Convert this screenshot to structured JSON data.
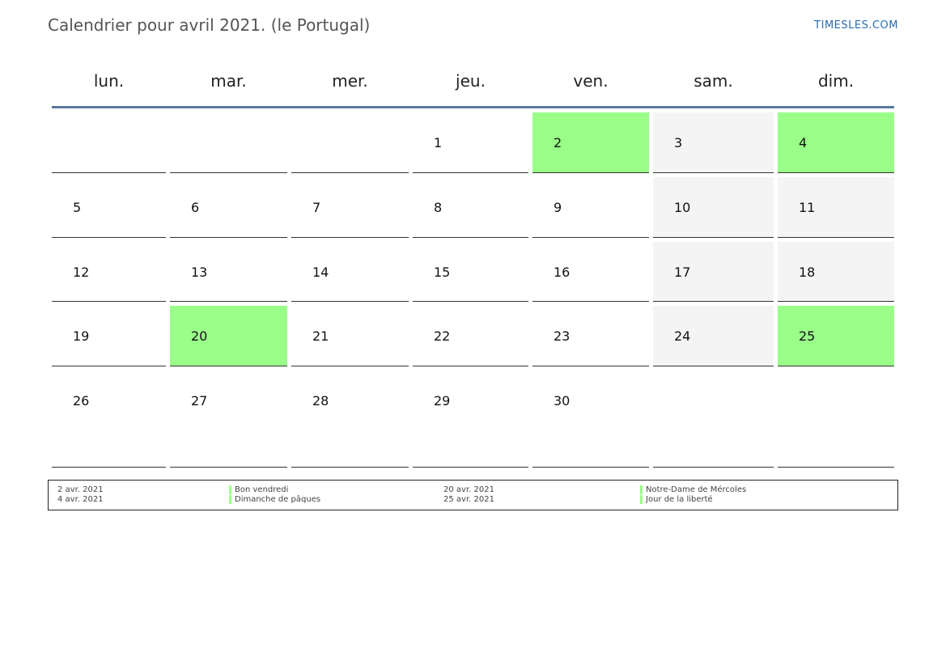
{
  "header": {
    "title": "Calendrier pour avril 2021. (le Portugal)",
    "brand": "TIMESLES.COM"
  },
  "weekdays": [
    "lun.",
    "mar.",
    "mer.",
    "jeu.",
    "ven.",
    "sam.",
    "dim."
  ],
  "colors": {
    "holiday": "#99ff88",
    "weekend": "#f4f4f4",
    "header_rule": "#5a78a0",
    "brand": "#2a6db0"
  },
  "weeks": [
    [
      {
        "day": "",
        "type": "empty"
      },
      {
        "day": "",
        "type": "empty"
      },
      {
        "day": "",
        "type": "empty"
      },
      {
        "day": "1",
        "type": "normal"
      },
      {
        "day": "2",
        "type": "holiday"
      },
      {
        "day": "3",
        "type": "weekend"
      },
      {
        "day": "4",
        "type": "holiday"
      }
    ],
    [
      {
        "day": "5",
        "type": "normal"
      },
      {
        "day": "6",
        "type": "normal"
      },
      {
        "day": "7",
        "type": "normal"
      },
      {
        "day": "8",
        "type": "normal"
      },
      {
        "day": "9",
        "type": "normal"
      },
      {
        "day": "10",
        "type": "weekend"
      },
      {
        "day": "11",
        "type": "weekend"
      }
    ],
    [
      {
        "day": "12",
        "type": "normal"
      },
      {
        "day": "13",
        "type": "normal"
      },
      {
        "day": "14",
        "type": "normal"
      },
      {
        "day": "15",
        "type": "normal"
      },
      {
        "day": "16",
        "type": "normal"
      },
      {
        "day": "17",
        "type": "weekend"
      },
      {
        "day": "18",
        "type": "weekend"
      }
    ],
    [
      {
        "day": "19",
        "type": "normal"
      },
      {
        "day": "20",
        "type": "holiday"
      },
      {
        "day": "21",
        "type": "normal"
      },
      {
        "day": "22",
        "type": "normal"
      },
      {
        "day": "23",
        "type": "normal"
      },
      {
        "day": "24",
        "type": "weekend"
      },
      {
        "day": "25",
        "type": "holiday"
      }
    ],
    [
      {
        "day": "26",
        "type": "normal"
      },
      {
        "day": "27",
        "type": "normal"
      },
      {
        "day": "28",
        "type": "normal"
      },
      {
        "day": "29",
        "type": "normal"
      },
      {
        "day": "30",
        "type": "normal"
      },
      {
        "day": "",
        "type": "empty"
      },
      {
        "day": "",
        "type": "empty"
      }
    ]
  ],
  "holidays": [
    {
      "date": "2 avr. 2021",
      "name": "Bon vendredi"
    },
    {
      "date": "4 avr. 2021",
      "name": "Dimanche de pâques"
    },
    {
      "date": "20 avr. 2021",
      "name": "Notre-Dame de Mércoles"
    },
    {
      "date": "25 avr. 2021",
      "name": "Jour de la liberté"
    }
  ]
}
